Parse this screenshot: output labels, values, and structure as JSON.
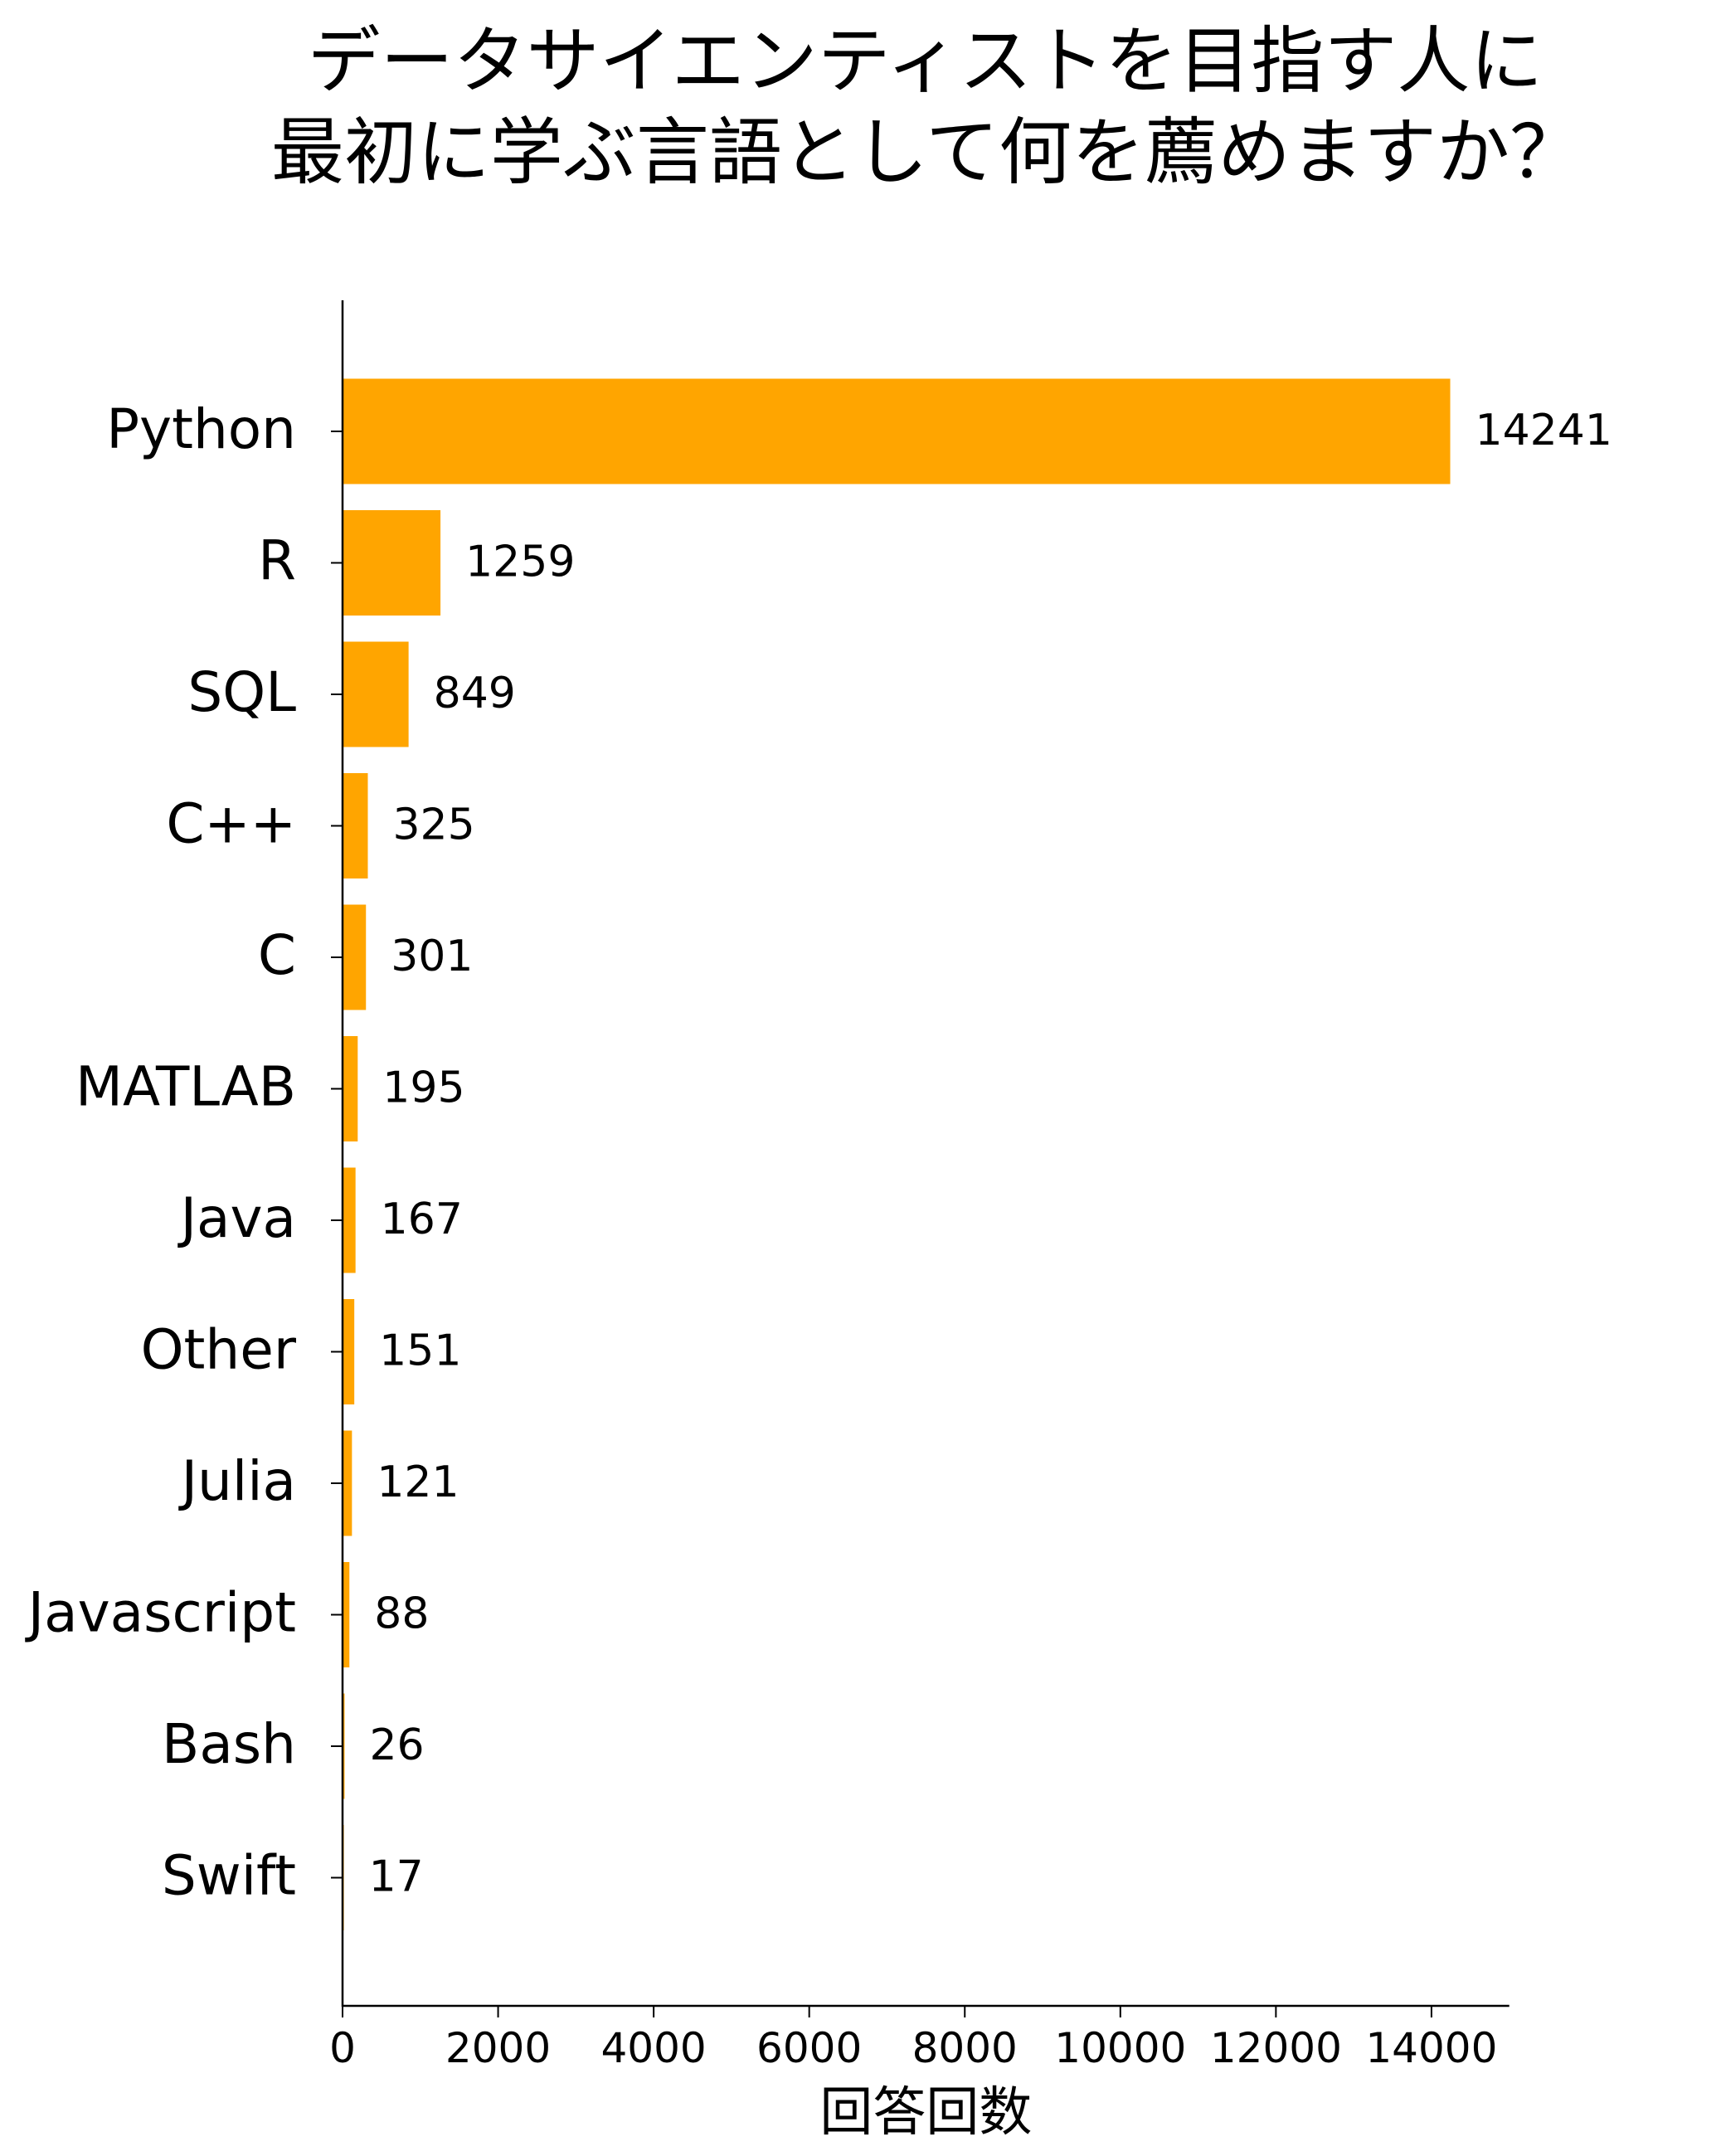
{
  "chart_data": {
    "type": "bar",
    "orientation": "horizontal",
    "title_lines": [
      "データサイエンティストを目指す人に",
      "最初に学ぶ言語として何を薦めますか？"
    ],
    "xlabel": "回答回数",
    "ylabel": "",
    "categories": [
      "Python",
      "R",
      "SQL",
      "C++",
      "C",
      "MATLAB",
      "Java",
      "Other",
      "Julia",
      "Javascript",
      "Bash",
      "Swift"
    ],
    "values": [
      14241,
      1259,
      849,
      325,
      301,
      195,
      167,
      151,
      121,
      88,
      26,
      17
    ],
    "data_labels": [
      "14241",
      "1259",
      "849",
      "325",
      "301",
      "195",
      "167",
      "151",
      "121",
      "88",
      "26",
      "17"
    ],
    "xlim": [
      0,
      15000
    ],
    "xticks": [
      0,
      2000,
      4000,
      6000,
      8000,
      10000,
      12000,
      14000
    ],
    "xtick_labels": [
      "0",
      "2000",
      "4000",
      "6000",
      "8000",
      "10000",
      "12000",
      "14000"
    ],
    "bar_color": "#FFA500",
    "grid": false,
    "legend": "none"
  }
}
